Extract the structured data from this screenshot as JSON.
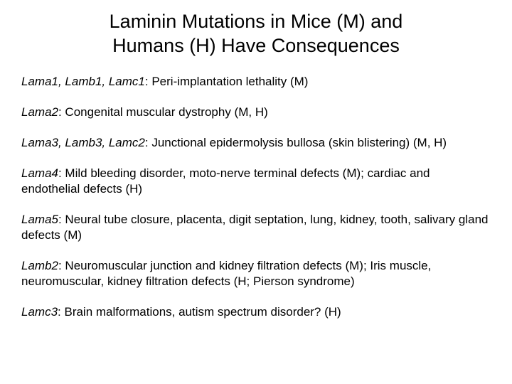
{
  "title_line1": "Laminin Mutations in Mice (M) and",
  "title_line2": "Humans (H) Have Consequences",
  "entries": [
    {
      "gene": "Lama1, Lamb1, Lamc1",
      "desc": ":  Peri-implantation lethality (M)"
    },
    {
      "gene": "Lama2",
      "desc": ":  Congenital muscular dystrophy (M, H)"
    },
    {
      "gene": "Lama3, Lamb3, Lamc2",
      "desc": ":  Junctional epidermolysis bullosa (skin blistering) (M, H)"
    },
    {
      "gene": "Lama4",
      "desc": ": Mild bleeding disorder, moto-nerve terminal defects (M); cardiac and endothelial defects (H)"
    },
    {
      "gene": "Lama5",
      "desc": ": Neural tube closure, placenta, digit septation, lung, kidney, tooth, salivary gland defects (M)"
    },
    {
      "gene": "Lamb2",
      "desc": ":  Neuromuscular junction and kidney filtration defects (M); Iris muscle, neuromuscular, kidney filtration defects (H; Pierson syndrome)"
    },
    {
      "gene": "Lamc3",
      "desc": ":  Brain malformations, autism spectrum disorder? (H)"
    }
  ]
}
